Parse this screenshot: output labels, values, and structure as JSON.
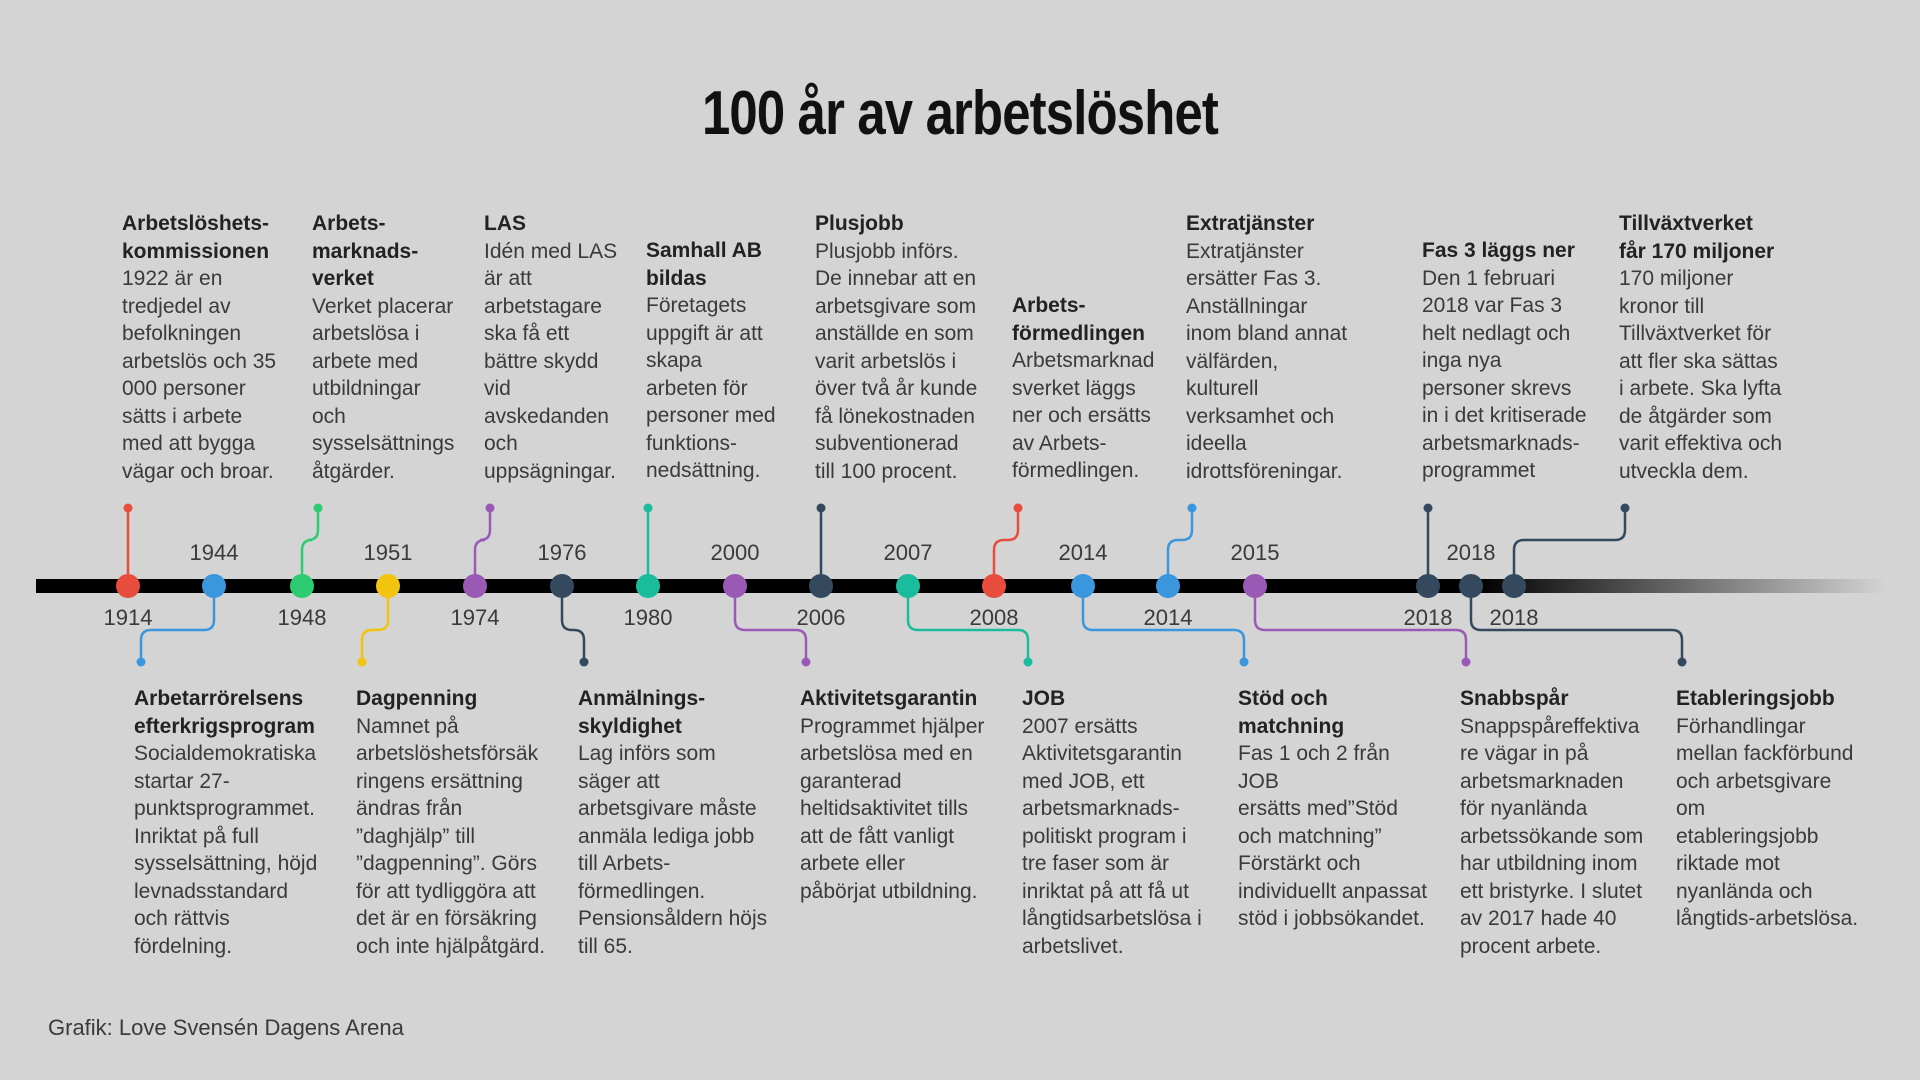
{
  "title": "100 år av arbetslöshet",
  "credit": "Grafik: Love Svensén Dagens Arena",
  "colors": {
    "red": "#e74c3c",
    "blue": "#3a96dd",
    "green": "#2ecc71",
    "yellow": "#f1c40f",
    "purple": "#9b59b6",
    "navy": "#34495e",
    "teal": "#1abc9c",
    "axis": "#000000"
  },
  "events": [
    {
      "key": "e1914",
      "year": "1914",
      "color": "red",
      "side": "above",
      "heading": "Arbetslöshets-\nkommissionen",
      "text": "1922 är en\ntredjedel av\nbefolkningen\narbetslös och 35\n000 personer\nsätts i arbete\nmed att bygga\nvägar och broar."
    },
    {
      "key": "e1944",
      "year": "1944",
      "color": "blue",
      "side": "below",
      "heading": "Arbetarrörelsens\nefterkrigsprogram",
      "text": "Socialdemokratiska\nstartar 27-\npunktsprogrammet.\nInriktat på full\nsysselsättning, höjd\nlevnadsstandard\noch rättvis\nfördelning."
    },
    {
      "key": "e1948",
      "year": "1948",
      "color": "green",
      "side": "above",
      "heading": "Arbets-\nmarknads-\nverket",
      "text": "Verket placerar\narbetslösa i\narbete med\nutbildningar\noch\nsysselsättnings\nåtgärder."
    },
    {
      "key": "e1951",
      "year": "1951",
      "color": "yellow",
      "side": "below",
      "heading": "Dagpenning",
      "text": "Namnet på\narbetslöshetsförsäk\nringens ersättning\nändras från\n”daghjälp” till\n”dagpenning”. Görs\nför att tydliggöra att\ndet är en försäkring\noch inte hjälpåtgärd."
    },
    {
      "key": "e1974",
      "year": "1974",
      "color": "purple",
      "side": "above",
      "heading": "LAS",
      "text": "Idén med LAS\när att\narbetstagare\nska få ett\nbättre skydd\nvid\navskedanden\noch\nuppsägningar."
    },
    {
      "key": "e1976",
      "year": "1976",
      "color": "navy",
      "side": "below",
      "heading": "Anmälnings-\nskyldighet",
      "text": "Lag införs som\nsäger att\narbetsgivare måste\nanmäla lediga jobb\ntill Arbets-\nförmedlingen.\nPensionsåldern höjs\ntill 65."
    },
    {
      "key": "e1980",
      "year": "1980",
      "color": "teal",
      "side": "above",
      "heading": "Samhall AB\nbildas",
      "text": "Företagets\nuppgift är att\nskapa\narbeten för\npersoner med\nfunktions-\nnedsättning."
    },
    {
      "key": "e2000",
      "year": "2000",
      "color": "purple",
      "side": "below",
      "heading": "Aktivitetsgarantin",
      "text": "Programmet hjälper\narbetslösa med en\ngaranterad\nheltidsaktivitet tills\natt de fått vanligt\narbete eller\npåbörjat utbildning."
    },
    {
      "key": "e2006",
      "year": "2006",
      "color": "navy",
      "side": "above",
      "heading": "Plusjobb",
      "text": "Plusjobb införs.\nDe innebar att en\narbetsgivare som\nanställde en som\nvarit arbetslös i\növer två år kunde\nfå lönekostnaden\nsubventionerad\ntill 100 procent."
    },
    {
      "key": "e2007",
      "year": "2007",
      "color": "teal",
      "side": "below",
      "heading": "JOB",
      "text": "2007 ersätts\nAktivitetsgarantin\nmed JOB, ett\narbetsmarknads-\npolitiskt program i\ntre faser som är\ninriktat på att få ut\nlångtidsarbetslösa i\narbetslivet."
    },
    {
      "key": "e2008",
      "year": "2008",
      "color": "red",
      "side": "above",
      "heading": "Arbets-\nförmedlingen",
      "text": "Arbetsmarknad\nsverket läggs\nner och ersätts\nav Arbets-\nförmedlingen."
    },
    {
      "key": "e2014a",
      "year": "2014",
      "color": "blue",
      "side": "below",
      "heading": "Stöd och\nmatchning",
      "text": "Fas 1 och 2 från JOB\nersätts med”Stöd\noch matchning”\nFörstärkt och\nindividuellt anpassat\nstöd i jobbsökandet."
    },
    {
      "key": "e2014b",
      "year": "2014",
      "color": "blue",
      "side": "above",
      "heading": "Extratjänster",
      "text": "Extratjänster\nersätter Fas 3.\nAnställningar\ninom bland annat\nvälfärden,\nkulturell\nverksamhet och\nideella\nidrottsföreningar."
    },
    {
      "key": "e2015",
      "year": "2015",
      "color": "purple",
      "side": "below",
      "heading": "Snabbspår",
      "text": "Snappspåreffektiva\nre vägar in på\narbetsmarknaden\nför nyanlända\narbetssökande som\nhar utbildning inom\nett bristyrke. I slutet\nav 2017 hade 40\nprocent arbete."
    },
    {
      "key": "e2018a",
      "year": "2018",
      "color": "navy",
      "side": "above",
      "heading": "Fas 3 läggs ner",
      "text": "Den 1 februari\n2018 var Fas 3\nhelt nedlagt och\ninga nya\npersoner skrevs\nin i det kritiserade\narbetsmarknads-\nprogrammet"
    },
    {
      "key": "e2018b",
      "year": "2018",
      "color": "navy",
      "side": "below",
      "heading": "Etableringsjobb",
      "text": "Förhandlingar\nmellan fackförbund\noch arbetsgivare om\netableringsjobb\nriktade mot\nnyanlända och\nlångtids-arbetslösa."
    },
    {
      "key": "e2018c",
      "year": "2018",
      "color": "navy",
      "side": "above",
      "heading": "Tillväxtverket\nfår 170 miljoner",
      "text": "170 miljoner\nkronor till\nTillväxtverket för\natt fler ska sättas\ni arbete. Ska lyfta\nde åtgärder som\nvarit effektiva och\nutveckla dem."
    }
  ]
}
